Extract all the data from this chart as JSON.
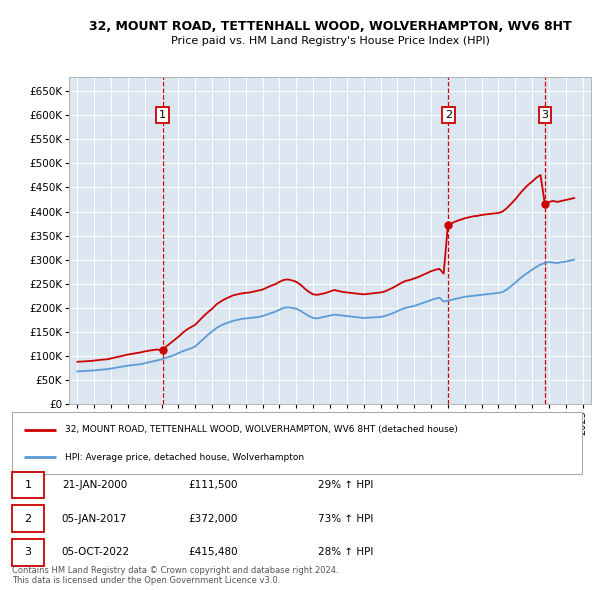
{
  "title": "32, MOUNT ROAD, TETTENHALL WOOD, WOLVERHAMPTON, WV6 8HT",
  "subtitle": "Price paid vs. HM Land Registry's House Price Index (HPI)",
  "background_color": "#dce6f1",
  "plot_bg_color": "#dce6f1",
  "outer_bg_color": "#ffffff",
  "red_line_color": "#cc0000",
  "blue_line_color": "#5b9bd5",
  "grid_color": "#ffffff",
  "sales": [
    {
      "date_num": 2000.06,
      "price": 111500,
      "label": "1"
    },
    {
      "date_num": 2017.02,
      "price": 372000,
      "label": "2"
    },
    {
      "date_num": 2022.76,
      "price": 415480,
      "label": "3"
    }
  ],
  "sale_dates_display": [
    "21-JAN-2000",
    "05-JAN-2017",
    "05-OCT-2022"
  ],
  "sale_prices_display": [
    "£111,500",
    "£372,000",
    "£415,480"
  ],
  "sale_pcts_display": [
    "29% ↑ HPI",
    "73% ↑ HPI",
    "28% ↑ HPI"
  ],
  "legend_line1": "32, MOUNT ROAD, TETTENHALL WOOD, WOLVERHAMPTON, WV6 8HT (detached house)",
  "legend_line2": "HPI: Average price, detached house, Wolverhampton",
  "footnote1": "Contains HM Land Registry data © Crown copyright and database right 2024.",
  "footnote2": "This data is licensed under the Open Government Licence v3.0.",
  "ylim": [
    0,
    680000
  ],
  "yticks": [
    0,
    50000,
    100000,
    150000,
    200000,
    250000,
    300000,
    350000,
    400000,
    450000,
    500000,
    550000,
    600000,
    650000
  ],
  "xmin": 1994.5,
  "xmax": 2025.5,
  "hpi_data": [
    [
      1995.0,
      68000
    ],
    [
      1995.25,
      68500
    ],
    [
      1995.5,
      69000
    ],
    [
      1995.75,
      69500
    ],
    [
      1996.0,
      70000
    ],
    [
      1996.25,
      71000
    ],
    [
      1996.5,
      72000
    ],
    [
      1996.75,
      72500
    ],
    [
      1997.0,
      74000
    ],
    [
      1997.25,
      75500
    ],
    [
      1997.5,
      77000
    ],
    [
      1997.75,
      78500
    ],
    [
      1998.0,
      80000
    ],
    [
      1998.25,
      81000
    ],
    [
      1998.5,
      82000
    ],
    [
      1998.75,
      83000
    ],
    [
      1999.0,
      85000
    ],
    [
      1999.25,
      87000
    ],
    [
      1999.5,
      89000
    ],
    [
      1999.75,
      91000
    ],
    [
      2000.0,
      93000
    ],
    [
      2000.25,
      96000
    ],
    [
      2000.5,
      99000
    ],
    [
      2000.75,
      102000
    ],
    [
      2001.0,
      106000
    ],
    [
      2001.25,
      110000
    ],
    [
      2001.5,
      113000
    ],
    [
      2001.75,
      116000
    ],
    [
      2002.0,
      120000
    ],
    [
      2002.25,
      128000
    ],
    [
      2002.5,
      136000
    ],
    [
      2002.75,
      144000
    ],
    [
      2003.0,
      151000
    ],
    [
      2003.25,
      158000
    ],
    [
      2003.5,
      163000
    ],
    [
      2003.75,
      167000
    ],
    [
      2004.0,
      170000
    ],
    [
      2004.25,
      173000
    ],
    [
      2004.5,
      175000
    ],
    [
      2004.75,
      177000
    ],
    [
      2005.0,
      178000
    ],
    [
      2005.25,
      179000
    ],
    [
      2005.5,
      180000
    ],
    [
      2005.75,
      181000
    ],
    [
      2006.0,
      183000
    ],
    [
      2006.25,
      186000
    ],
    [
      2006.5,
      189000
    ],
    [
      2006.75,
      192000
    ],
    [
      2007.0,
      196000
    ],
    [
      2007.25,
      200000
    ],
    [
      2007.5,
      201000
    ],
    [
      2007.75,
      200000
    ],
    [
      2008.0,
      198000
    ],
    [
      2008.25,
      194000
    ],
    [
      2008.5,
      188000
    ],
    [
      2008.75,
      183000
    ],
    [
      2009.0,
      179000
    ],
    [
      2009.25,
      178000
    ],
    [
      2009.5,
      180000
    ],
    [
      2009.75,
      182000
    ],
    [
      2010.0,
      184000
    ],
    [
      2010.25,
      186000
    ],
    [
      2010.5,
      185000
    ],
    [
      2010.75,
      184000
    ],
    [
      2011.0,
      183000
    ],
    [
      2011.25,
      182000
    ],
    [
      2011.5,
      181000
    ],
    [
      2011.75,
      180000
    ],
    [
      2012.0,
      179000
    ],
    [
      2012.25,
      179500
    ],
    [
      2012.5,
      180000
    ],
    [
      2012.75,
      180500
    ],
    [
      2013.0,
      181000
    ],
    [
      2013.25,
      183000
    ],
    [
      2013.5,
      186000
    ],
    [
      2013.75,
      189000
    ],
    [
      2014.0,
      193000
    ],
    [
      2014.25,
      197000
    ],
    [
      2014.5,
      200000
    ],
    [
      2014.75,
      202000
    ],
    [
      2015.0,
      204000
    ],
    [
      2015.25,
      207000
    ],
    [
      2015.5,
      210000
    ],
    [
      2015.75,
      213000
    ],
    [
      2016.0,
      216000
    ],
    [
      2016.25,
      219000
    ],
    [
      2016.5,
      221000
    ],
    [
      2016.75,
      213000
    ],
    [
      2017.0,
      215000
    ],
    [
      2017.25,
      217000
    ],
    [
      2017.5,
      219000
    ],
    [
      2017.75,
      221000
    ],
    [
      2018.0,
      223000
    ],
    [
      2018.25,
      224000
    ],
    [
      2018.5,
      225000
    ],
    [
      2018.75,
      226000
    ],
    [
      2019.0,
      227000
    ],
    [
      2019.25,
      228000
    ],
    [
      2019.5,
      229000
    ],
    [
      2019.75,
      230000
    ],
    [
      2020.0,
      231000
    ],
    [
      2020.25,
      233000
    ],
    [
      2020.5,
      238000
    ],
    [
      2020.75,
      245000
    ],
    [
      2021.0,
      252000
    ],
    [
      2021.25,
      260000
    ],
    [
      2021.5,
      267000
    ],
    [
      2021.75,
      273000
    ],
    [
      2022.0,
      279000
    ],
    [
      2022.25,
      285000
    ],
    [
      2022.5,
      290000
    ],
    [
      2022.75,
      293000
    ],
    [
      2023.0,
      295000
    ],
    [
      2023.25,
      294000
    ],
    [
      2023.5,
      293000
    ],
    [
      2023.75,
      295000
    ],
    [
      2024.0,
      296000
    ],
    [
      2024.25,
      298000
    ],
    [
      2024.5,
      300000
    ]
  ],
  "property_data": [
    [
      1995.0,
      88000
    ],
    [
      1995.25,
      88500
    ],
    [
      1995.5,
      89000
    ],
    [
      1995.75,
      89500
    ],
    [
      1996.0,
      90500
    ],
    [
      1996.25,
      91500
    ],
    [
      1996.5,
      92500
    ],
    [
      1996.75,
      93000
    ],
    [
      1997.0,
      95000
    ],
    [
      1997.25,
      97000
    ],
    [
      1997.5,
      99000
    ],
    [
      1997.75,
      101000
    ],
    [
      1998.0,
      103000
    ],
    [
      1998.25,
      104500
    ],
    [
      1998.5,
      106000
    ],
    [
      1998.75,
      107500
    ],
    [
      1999.0,
      109500
    ],
    [
      1999.25,
      111000
    ],
    [
      1999.5,
      112500
    ],
    [
      1999.75,
      113500
    ],
    [
      2000.0,
      111500
    ],
    [
      2000.25,
      119000
    ],
    [
      2000.5,
      126000
    ],
    [
      2000.75,
      133000
    ],
    [
      2001.0,
      140000
    ],
    [
      2001.25,
      148000
    ],
    [
      2001.5,
      155000
    ],
    [
      2001.75,
      160000
    ],
    [
      2002.0,
      165000
    ],
    [
      2002.25,
      174000
    ],
    [
      2002.5,
      183000
    ],
    [
      2002.75,
      191000
    ],
    [
      2003.0,
      198000
    ],
    [
      2003.25,
      207000
    ],
    [
      2003.5,
      213000
    ],
    [
      2003.75,
      218000
    ],
    [
      2004.0,
      222000
    ],
    [
      2004.25,
      226000
    ],
    [
      2004.5,
      228000
    ],
    [
      2004.75,
      230000
    ],
    [
      2005.0,
      231000
    ],
    [
      2005.25,
      232000
    ],
    [
      2005.5,
      234000
    ],
    [
      2005.75,
      236000
    ],
    [
      2006.0,
      238000
    ],
    [
      2006.25,
      242000
    ],
    [
      2006.5,
      246000
    ],
    [
      2006.75,
      249000
    ],
    [
      2007.0,
      254000
    ],
    [
      2007.25,
      258000
    ],
    [
      2007.5,
      259000
    ],
    [
      2007.75,
      257000
    ],
    [
      2008.0,
      254000
    ],
    [
      2008.25,
      248000
    ],
    [
      2008.5,
      240000
    ],
    [
      2008.75,
      233000
    ],
    [
      2009.0,
      228000
    ],
    [
      2009.25,
      227000
    ],
    [
      2009.5,
      229000
    ],
    [
      2009.75,
      231000
    ],
    [
      2010.0,
      234000
    ],
    [
      2010.25,
      237000
    ],
    [
      2010.5,
      235000
    ],
    [
      2010.75,
      233000
    ],
    [
      2011.0,
      232000
    ],
    [
      2011.25,
      231000
    ],
    [
      2011.5,
      230000
    ],
    [
      2011.75,
      229000
    ],
    [
      2012.0,
      228000
    ],
    [
      2012.25,
      229000
    ],
    [
      2012.5,
      230000
    ],
    [
      2012.75,
      231000
    ],
    [
      2013.0,
      232000
    ],
    [
      2013.25,
      234000
    ],
    [
      2013.5,
      238000
    ],
    [
      2013.75,
      242000
    ],
    [
      2014.0,
      247000
    ],
    [
      2014.25,
      252000
    ],
    [
      2014.5,
      256000
    ],
    [
      2014.75,
      258000
    ],
    [
      2015.0,
      261000
    ],
    [
      2015.25,
      264000
    ],
    [
      2015.5,
      268000
    ],
    [
      2015.75,
      272000
    ],
    [
      2016.0,
      276000
    ],
    [
      2016.25,
      279000
    ],
    [
      2016.5,
      281000
    ],
    [
      2016.75,
      271000
    ],
    [
      2017.0,
      372000
    ],
    [
      2017.25,
      376000
    ],
    [
      2017.5,
      380000
    ],
    [
      2017.75,
      383000
    ],
    [
      2018.0,
      386000
    ],
    [
      2018.25,
      388000
    ],
    [
      2018.5,
      390000
    ],
    [
      2018.75,
      391000
    ],
    [
      2019.0,
      393000
    ],
    [
      2019.25,
      394000
    ],
    [
      2019.5,
      395000
    ],
    [
      2019.75,
      396000
    ],
    [
      2020.0,
      397000
    ],
    [
      2020.25,
      400000
    ],
    [
      2020.5,
      407000
    ],
    [
      2020.75,
      416000
    ],
    [
      2021.0,
      425000
    ],
    [
      2021.25,
      436000
    ],
    [
      2021.5,
      446000
    ],
    [
      2021.75,
      455000
    ],
    [
      2022.0,
      462000
    ],
    [
      2022.25,
      470000
    ],
    [
      2022.5,
      476000
    ],
    [
      2022.76,
      415480
    ],
    [
      2023.0,
      420000
    ],
    [
      2023.25,
      422000
    ],
    [
      2023.5,
      420000
    ],
    [
      2023.75,
      422000
    ],
    [
      2024.0,
      424000
    ],
    [
      2024.25,
      426000
    ],
    [
      2024.5,
      428000
    ]
  ]
}
